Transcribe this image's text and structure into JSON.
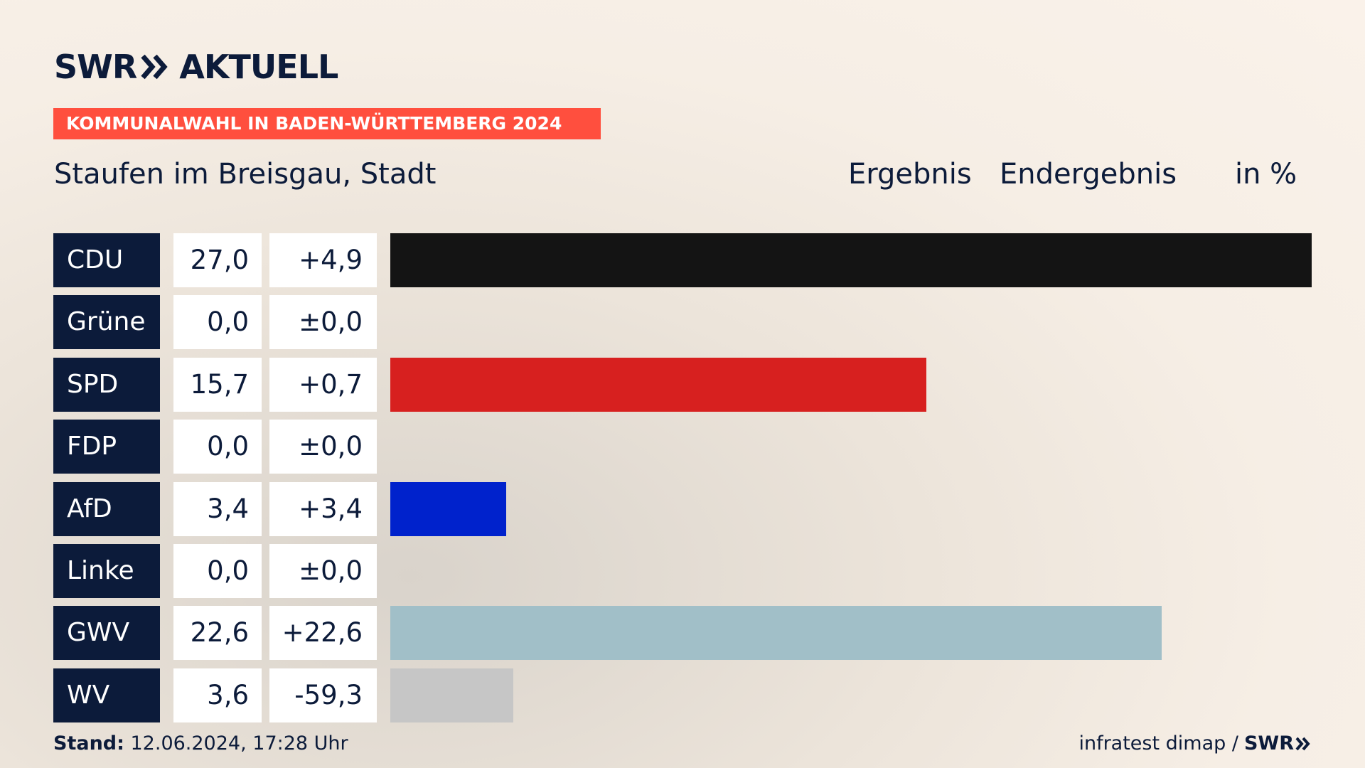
{
  "brand": {
    "logo_left": "SWR",
    "logo_right": "AKTUELL"
  },
  "banner": "KOMMUNALWAHL IN BADEN-WÜRTTEMBERG 2024",
  "header": {
    "location": "Staufen im Breisgau, Stadt",
    "col_result": "Ergebnis",
    "col_final": "Endergebnis",
    "col_unit": "in %"
  },
  "chart_data": {
    "type": "bar",
    "orientation": "horizontal",
    "title": "Staufen im Breisgau, Stadt",
    "unit": "%",
    "categories": [
      "CDU",
      "Grüne",
      "SPD",
      "FDP",
      "AfD",
      "Linke",
      "GWV",
      "WV"
    ],
    "values": [
      27.0,
      0.0,
      15.7,
      0.0,
      3.4,
      0.0,
      22.6,
      3.6
    ],
    "value_labels": [
      "27,0",
      "0,0",
      "15,7",
      "0,0",
      "3,4",
      "0,0",
      "22,6",
      "3,6"
    ],
    "diff_labels": [
      "+4,9",
      "±0,0",
      "+0,7",
      "±0,0",
      "+3,4",
      "±0,0",
      "+22,6",
      "-59,3"
    ],
    "colors": [
      "#141414",
      "#2a9a3a",
      "#d7201f",
      "#f5d400",
      "#0022cc",
      "#be3075",
      "#a1bfc8",
      "#c6c6c6"
    ],
    "xlim": [
      0,
      27.0
    ]
  },
  "footer": {
    "stand_label": "Stand:",
    "stand_value": " 12.06.2024, 17:28 Uhr",
    "source": "infratest dimap /",
    "source_brand": "SWR"
  }
}
